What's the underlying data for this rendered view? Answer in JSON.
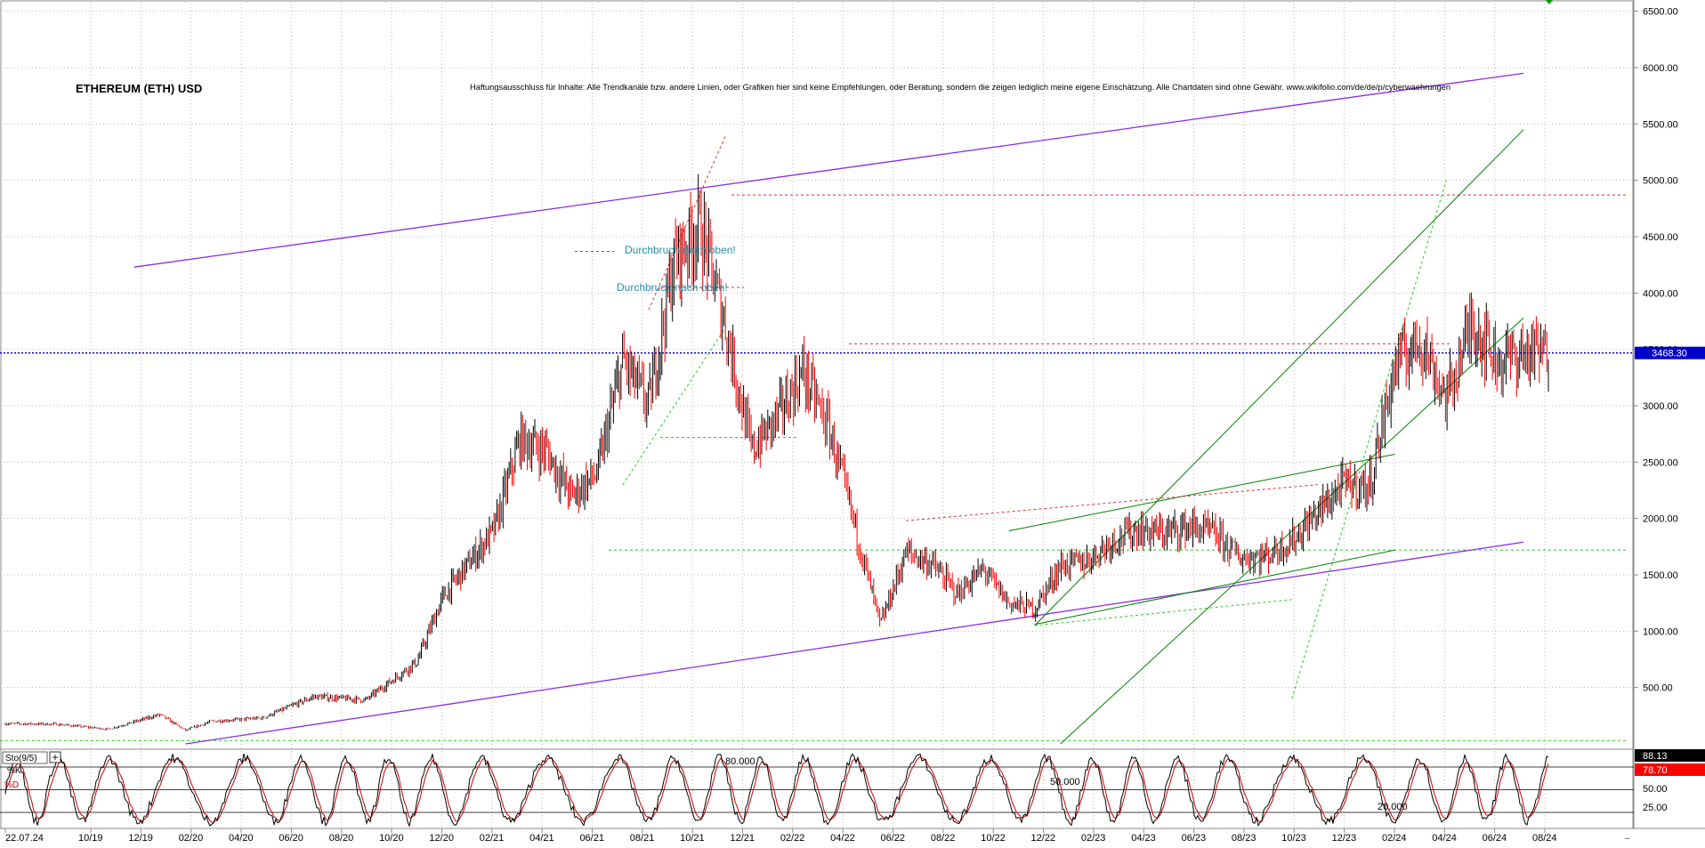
{
  "colors": {
    "background": "#ffffff",
    "grid": "#b8b8b8",
    "candle_up": "#000000",
    "candle_down": "#ff0000",
    "channel_purple": "#8a2be2",
    "trend_green": "#008000",
    "support_green_dashed": "#22cc22",
    "resistance_red_dashed": "#e03030",
    "price_tag_bg": "#0000cc",
    "price_line": "#0000cc",
    "k_line": "#000000",
    "d_line": "#cc0000",
    "annotation_text": "#2a8ca8",
    "marker_green": "#009900"
  },
  "title": "ETHEREUM (ETH) USD",
  "disclaimer": "Haftungsausschluss für Inhalte: Alle Trendkanäle bzw. andere Linien, oder Grafiken hier sind keine Empfehlungen, oder Beratung, sondern die zeigen lediglich meine eigene Einschätzung. Alle Chartdaten sind ohne Gewähr.  www.wikifolio.com/de/de/p/cyberwaehrungen",
  "annotations": [
    "Durchbruch nach oben!",
    "Durchbruch nach oben!"
  ],
  "current_price_label": "3468.30",
  "oscillator": {
    "label": "Sto(9/5)",
    "k_label": "%K",
    "d_label": "%D",
    "k_value": "88.13",
    "d_value": "78.70",
    "levels": [
      "80.000",
      "50.000",
      "20.000"
    ],
    "axis_ticks": [
      "50.00",
      "25.00"
    ],
    "ylim": [
      0,
      100
    ]
  },
  "chart_data": {
    "type": "candlestick",
    "title": "ETHEREUM (ETH) USD",
    "x_tick_labels": [
      "22.07.24",
      "10/19",
      "12/19",
      "02/20",
      "04/20",
      "06/20",
      "08/20",
      "10/20",
      "12/20",
      "02/21",
      "04/21",
      "06/21",
      "08/21",
      "10/21",
      "12/21",
      "02/22",
      "04/22",
      "06/22",
      "08/22",
      "10/22",
      "12/22",
      "02/23",
      "04/23",
      "06/23",
      "08/23",
      "10/23",
      "12/23",
      "02/24",
      "04/24",
      "06/24",
      "08/24"
    ],
    "y_tick_labels": [
      "500.00",
      "1000.00",
      "1500.00",
      "2000.00",
      "2500.00",
      "3000.00",
      "3500.00",
      "4000.00",
      "4500.00",
      "5000.00",
      "5500.00",
      "6000.00",
      "6500.00"
    ],
    "ylim": [
      0,
      6600
    ],
    "scale": "linear",
    "x_month_range": [
      "2019-08",
      "2024-08"
    ],
    "price_path_monthly": [
      {
        "month": "2019-08",
        "close": 180
      },
      {
        "month": "2019-10",
        "close": 175
      },
      {
        "month": "2019-12",
        "close": 130
      },
      {
        "month": "2020-02",
        "close": 260
      },
      {
        "month": "2020-03",
        "close": 120
      },
      {
        "month": "2020-04",
        "close": 200
      },
      {
        "month": "2020-06",
        "close": 230
      },
      {
        "month": "2020-08",
        "close": 420
      },
      {
        "month": "2020-10",
        "close": 390
      },
      {
        "month": "2020-12",
        "close": 730
      },
      {
        "month": "2021-01",
        "close": 1300
      },
      {
        "month": "2021-02",
        "close": 1600
      },
      {
        "month": "2021-03",
        "close": 1900
      },
      {
        "month": "2021-04",
        "close": 2700
      },
      {
        "month": "2021-05",
        "close": 2600
      },
      {
        "month": "2021-06",
        "close": 2200
      },
      {
        "month": "2021-07",
        "close": 2400
      },
      {
        "month": "2021-08",
        "close": 3400
      },
      {
        "month": "2021-09",
        "close": 3000
      },
      {
        "month": "2021-10",
        "close": 4300
      },
      {
        "month": "2021-11",
        "close": 4600
      },
      {
        "month": "2021-12",
        "close": 3700
      },
      {
        "month": "2022-01",
        "close": 2600
      },
      {
        "month": "2022-02",
        "close": 2900
      },
      {
        "month": "2022-03",
        "close": 3300
      },
      {
        "month": "2022-04",
        "close": 2800
      },
      {
        "month": "2022-05",
        "close": 1950
      },
      {
        "month": "2022-06",
        "close": 1050
      },
      {
        "month": "2022-07",
        "close": 1700
      },
      {
        "month": "2022-08",
        "close": 1600
      },
      {
        "month": "2022-09",
        "close": 1330
      },
      {
        "month": "2022-10",
        "close": 1550
      },
      {
        "month": "2022-11",
        "close": 1250
      },
      {
        "month": "2022-12",
        "close": 1200
      },
      {
        "month": "2023-01",
        "close": 1580
      },
      {
        "month": "2023-02",
        "close": 1620
      },
      {
        "month": "2023-03",
        "close": 1800
      },
      {
        "month": "2023-04",
        "close": 1900
      },
      {
        "month": "2023-05",
        "close": 1870
      },
      {
        "month": "2023-06",
        "close": 1930
      },
      {
        "month": "2023-07",
        "close": 1860
      },
      {
        "month": "2023-08",
        "close": 1650
      },
      {
        "month": "2023-09",
        "close": 1670
      },
      {
        "month": "2023-10",
        "close": 1800
      },
      {
        "month": "2023-11",
        "close": 2050
      },
      {
        "month": "2023-12",
        "close": 2300
      },
      {
        "month": "2024-01",
        "close": 2280
      },
      {
        "month": "2024-02",
        "close": 3350
      },
      {
        "month": "2024-03",
        "close": 3600
      },
      {
        "month": "2024-04",
        "close": 3050
      },
      {
        "month": "2024-05",
        "close": 3750
      },
      {
        "month": "2024-06",
        "close": 3400
      },
      {
        "month": "2024-07",
        "close": 3468
      }
    ],
    "horizontal_levels": [
      {
        "value": 4870,
        "style": "dashed",
        "color": "red"
      },
      {
        "value": 4370,
        "style": "dashed",
        "color": "red"
      },
      {
        "value": 4050,
        "style": "dashed",
        "color": "red"
      },
      {
        "value": 3550,
        "style": "dashed",
        "color": "red"
      },
      {
        "value": 2720,
        "style": "dashed",
        "color": "green"
      },
      {
        "value": 1720,
        "style": "dashed",
        "color": "green"
      },
      {
        "value": 30,
        "style": "dashed",
        "color": "green"
      },
      {
        "value": 3468.3,
        "style": "dotted",
        "color": "blue"
      }
    ],
    "trend_lines": [
      {
        "from": [
          "2020-01",
          4230
        ],
        "to": [
          "2024-07",
          5950
        ],
        "color": "purple"
      },
      {
        "from": [
          "2020-03",
          0
        ],
        "to": [
          "2024-07",
          1790
        ],
        "color": "purple"
      },
      {
        "from": [
          "2022-12",
          1050
        ],
        "to": [
          "2024-07",
          5450
        ],
        "color": "green"
      },
      {
        "from": [
          "2023-01",
          0
        ],
        "to": [
          "2024-07",
          3780
        ],
        "color": "green"
      },
      {
        "from": [
          "2022-12",
          1060
        ],
        "to": [
          "2024-02",
          1720
        ],
        "color": "green"
      },
      {
        "from": [
          "2022-11",
          1890
        ],
        "to": [
          "2024-02",
          2570
        ],
        "color": "green"
      }
    ]
  }
}
